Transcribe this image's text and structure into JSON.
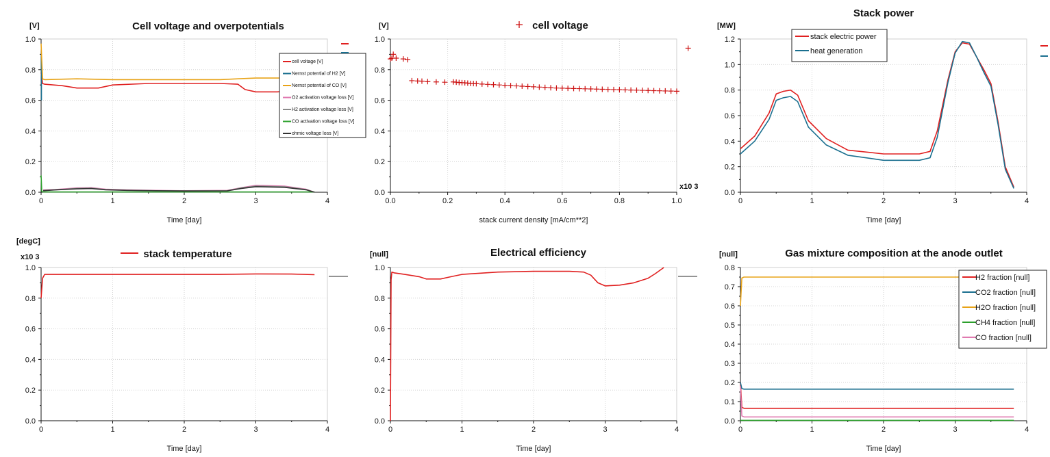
{
  "chart_data": [
    {
      "type": "line",
      "title": "Cell voltage and overpotentials",
      "unit": "[V]",
      "xlabel": "Time [day]",
      "xlim": [
        0,
        4
      ],
      "ylim": [
        0,
        1
      ],
      "xticks": [
        "0",
        "1",
        "2",
        "3",
        "4"
      ],
      "yticks": [
        "0.0",
        "0.2",
        "0.4",
        "0.6",
        "0.8",
        "1.0"
      ],
      "legend_style": "small",
      "legend_position": "right",
      "series": [
        {
          "name": "cell voltage [V]",
          "color": "#e02020",
          "x": [
            0,
            0.02,
            0.05,
            0.3,
            0.5,
            0.8,
            1.0,
            1.5,
            2.0,
            2.5,
            2.75,
            2.85,
            3.0,
            3.3,
            3.45
          ],
          "y": [
            0.78,
            0.71,
            0.705,
            0.695,
            0.68,
            0.68,
            0.7,
            0.71,
            0.71,
            0.71,
            0.705,
            0.67,
            0.655,
            0.655,
            0.66
          ]
        },
        {
          "name": "Nernst potential of H2 [V]",
          "color": "#1a6f8f",
          "x": [
            0.005,
            0.005
          ],
          "y": [
            0.6,
            0.9
          ]
        },
        {
          "name": "Nernst potential of CO [V]",
          "color": "#e8a317",
          "x": [
            0,
            0.02,
            0.05,
            0.5,
            1.0,
            1.5,
            2.0,
            2.5,
            2.75,
            3.0,
            3.45
          ],
          "y": [
            0.97,
            0.74,
            0.735,
            0.74,
            0.735,
            0.735,
            0.735,
            0.735,
            0.74,
            0.745,
            0.745
          ]
        },
        {
          "name": "O2 activation voltage loss [V]",
          "color": "#e07ab0",
          "x": [
            0.03,
            0.2,
            0.5,
            0.7,
            0.9,
            1.2,
            1.6,
            2.0,
            2.6,
            2.8,
            3.0,
            3.4,
            3.7,
            3.82
          ],
          "y": [
            0.015,
            0.018,
            0.028,
            0.03,
            0.02,
            0.015,
            0.012,
            0.01,
            0.012,
            0.03,
            0.045,
            0.04,
            0.02,
            0.0
          ]
        },
        {
          "name": "H2 activation voltage loss [V]",
          "color": "#8a8a8a",
          "x": [
            0.03,
            0.2,
            0.5,
            0.7,
            0.9,
            1.2,
            1.6,
            2.0,
            2.6,
            2.8,
            3.0,
            3.4,
            3.7,
            3.82
          ],
          "y": [
            0.012,
            0.016,
            0.025,
            0.027,
            0.018,
            0.013,
            0.01,
            0.009,
            0.01,
            0.028,
            0.04,
            0.036,
            0.018,
            0.0
          ]
        },
        {
          "name": "CO activation voltage loss [V]",
          "color": "#2ca02c",
          "x": [
            0,
            0.01,
            0.03,
            1.0,
            2.0,
            3.0,
            3.82
          ],
          "y": [
            0.11,
            0.005,
            0.002,
            0.002,
            0.002,
            0.002,
            0.002
          ]
        },
        {
          "name": "ohmic voltage loss [V]",
          "color": "#333333",
          "x": [
            0.03,
            0.2,
            0.5,
            0.7,
            0.9,
            1.2,
            1.6,
            2.0,
            2.6,
            2.8,
            3.0,
            3.4,
            3.7,
            3.82
          ],
          "y": [
            0.01,
            0.015,
            0.022,
            0.024,
            0.016,
            0.012,
            0.01,
            0.008,
            0.009,
            0.025,
            0.036,
            0.032,
            0.016,
            0.0
          ]
        }
      ]
    },
    {
      "type": "scatter",
      "title": "cell voltage",
      "unit": "[V]",
      "xlabel": "stack current density [mA/cm**2]",
      "xmultiplier": "x10 3",
      "xlim": [
        0,
        1
      ],
      "ylim": [
        0,
        1
      ],
      "xticks": [
        "0.0",
        "0.2",
        "0.4",
        "0.6",
        "0.8",
        "1.0"
      ],
      "yticks": [
        "0.0",
        "0.2",
        "0.4",
        "0.6",
        "0.8",
        "1.0"
      ],
      "legend_position": "top",
      "marker": "+",
      "series": [
        {
          "name": "cell voltage",
          "color": "#cc1111",
          "x": [
            0.0,
            0.005,
            0.01,
            0.02,
            0.045,
            0.06,
            0.075,
            0.095,
            0.11,
            0.13,
            0.16,
            0.19,
            0.22,
            0.23,
            0.24,
            0.25,
            0.26,
            0.27,
            0.28,
            0.29,
            0.3,
            0.32,
            0.34,
            0.36,
            0.38,
            0.4,
            0.42,
            0.44,
            0.46,
            0.48,
            0.5,
            0.52,
            0.54,
            0.56,
            0.58,
            0.6,
            0.62,
            0.64,
            0.66,
            0.68,
            0.7,
            0.72,
            0.74,
            0.76,
            0.78,
            0.8,
            0.82,
            0.84,
            0.86,
            0.88,
            0.9,
            0.92,
            0.94,
            0.96,
            0.98,
            1.0,
            1.04
          ],
          "y": [
            0.87,
            0.875,
            0.9,
            0.875,
            0.87,
            0.865,
            0.728,
            0.726,
            0.725,
            0.722,
            0.72,
            0.718,
            0.72,
            0.718,
            0.716,
            0.715,
            0.714,
            0.712,
            0.71,
            0.709,
            0.708,
            0.706,
            0.704,
            0.702,
            0.7,
            0.698,
            0.696,
            0.694,
            0.692,
            0.69,
            0.688,
            0.686,
            0.684,
            0.682,
            0.68,
            0.679,
            0.678,
            0.677,
            0.676,
            0.675,
            0.674,
            0.673,
            0.672,
            0.671,
            0.67,
            0.669,
            0.668,
            0.667,
            0.666,
            0.665,
            0.664,
            0.663,
            0.662,
            0.661,
            0.66,
            0.659,
            0.94
          ]
        }
      ]
    },
    {
      "type": "line",
      "title": "Stack power",
      "unit": "[MW]",
      "xlabel": "Time [day]",
      "xlim": [
        0,
        4
      ],
      "ylim": [
        0,
        1.2
      ],
      "xticks": [
        "0",
        "1",
        "2",
        "3",
        "4"
      ],
      "yticks": [
        "0.0",
        "0.2",
        "0.4",
        "0.6",
        "0.8",
        "1.0",
        "1.2"
      ],
      "legend_position": "top-left",
      "series": [
        {
          "name": "stack electric power",
          "color": "#e02020",
          "x": [
            0,
            0.2,
            0.4,
            0.5,
            0.6,
            0.7,
            0.8,
            0.95,
            1.2,
            1.5,
            2.0,
            2.5,
            2.65,
            2.75,
            2.9,
            3.0,
            3.1,
            3.2,
            3.3,
            3.4,
            3.5,
            3.6,
            3.7,
            3.82
          ],
          "y": [
            0.34,
            0.44,
            0.62,
            0.77,
            0.79,
            0.8,
            0.76,
            0.56,
            0.42,
            0.33,
            0.3,
            0.3,
            0.32,
            0.48,
            0.88,
            1.1,
            1.17,
            1.16,
            1.06,
            0.96,
            0.85,
            0.55,
            0.2,
            0.04
          ]
        },
        {
          "name": "heat generation",
          "color": "#1a6f8f",
          "x": [
            0,
            0.2,
            0.4,
            0.5,
            0.6,
            0.7,
            0.8,
            0.95,
            1.2,
            1.5,
            2.0,
            2.5,
            2.65,
            2.75,
            2.9,
            3.0,
            3.1,
            3.2,
            3.3,
            3.4,
            3.5,
            3.6,
            3.7,
            3.82
          ],
          "y": [
            0.3,
            0.4,
            0.57,
            0.72,
            0.74,
            0.75,
            0.71,
            0.51,
            0.37,
            0.29,
            0.25,
            0.25,
            0.27,
            0.43,
            0.86,
            1.09,
            1.18,
            1.17,
            1.06,
            0.94,
            0.83,
            0.53,
            0.18,
            0.03
          ]
        }
      ]
    },
    {
      "type": "line",
      "title": "stack temperature",
      "unit": "[degC]",
      "ymultiplier": "x10 3",
      "xlabel": "Time [day]",
      "xlim": [
        0,
        4
      ],
      "ylim": [
        0,
        1
      ],
      "xticks": [
        "0",
        "1",
        "2",
        "3",
        "4"
      ],
      "yticks": [
        "0.0",
        "0.2",
        "0.4",
        "0.6",
        "0.8",
        "1.0"
      ],
      "legend_position": "top",
      "series": [
        {
          "name": "stack temperature",
          "color": "#e02020",
          "x": [
            0,
            0.02,
            0.05,
            0.5,
            1.0,
            2.0,
            2.5,
            3.0,
            3.5,
            3.82
          ],
          "y": [
            0.8,
            0.93,
            0.955,
            0.955,
            0.955,
            0.955,
            0.955,
            0.958,
            0.957,
            0.953
          ]
        }
      ]
    },
    {
      "type": "line",
      "title": "Electrical efficiency",
      "unit": "[null]",
      "xlabel": "Time [day]",
      "xlim": [
        0,
        4
      ],
      "ylim": [
        0,
        1
      ],
      "xticks": [
        "0",
        "1",
        "2",
        "3",
        "4"
      ],
      "yticks": [
        "0.0",
        "0.2",
        "0.4",
        "0.6",
        "0.8",
        "1.0"
      ],
      "legend_position": "none",
      "series": [
        {
          "name": "electrical efficiency",
          "color": "#e02020",
          "x": [
            0,
            0.01,
            0.02,
            0.05,
            0.2,
            0.4,
            0.5,
            0.7,
            0.85,
            1.0,
            1.5,
            2.0,
            2.5,
            2.7,
            2.8,
            2.9,
            3.0,
            3.2,
            3.4,
            3.6,
            3.7,
            3.82
          ],
          "y": [
            0.0,
            0.92,
            0.97,
            0.965,
            0.955,
            0.94,
            0.925,
            0.925,
            0.94,
            0.955,
            0.97,
            0.975,
            0.975,
            0.97,
            0.95,
            0.9,
            0.88,
            0.885,
            0.9,
            0.93,
            0.96,
            1.0
          ]
        }
      ]
    },
    {
      "type": "line",
      "title": "Gas mixture composition at the anode outlet",
      "unit": "[null]",
      "xlabel": "Time [day]",
      "xlim": [
        0,
        4
      ],
      "ylim": [
        0,
        0.8
      ],
      "xticks": [
        "0",
        "1",
        "2",
        "3",
        "4"
      ],
      "yticks": [
        "0.0",
        "0.1",
        "0.2",
        "0.3",
        "0.4",
        "0.5",
        "0.6",
        "0.7",
        "0.8"
      ],
      "legend_position": "right",
      "series": [
        {
          "name": "H2 fraction [null]",
          "color": "#e02020",
          "x": [
            0,
            0.02,
            0.05,
            1.0,
            2.0,
            3.0,
            3.82
          ],
          "y": [
            0.2,
            0.07,
            0.065,
            0.065,
            0.065,
            0.065,
            0.065
          ]
        },
        {
          "name": "CO2 fraction [null]",
          "color": "#1a6f8f",
          "x": [
            0,
            0.02,
            0.05,
            1.0,
            2.0,
            3.0,
            3.82
          ],
          "y": [
            0.2,
            0.168,
            0.165,
            0.165,
            0.165,
            0.165,
            0.165
          ]
        },
        {
          "name": "H2O fraction [null]",
          "color": "#e8a317",
          "x": [
            0,
            0.02,
            0.05,
            1.0,
            2.0,
            3.0,
            3.82
          ],
          "y": [
            0.6,
            0.745,
            0.75,
            0.75,
            0.75,
            0.75,
            0.75
          ]
        },
        {
          "name": "CH4 fraction [null]",
          "color": "#2ca02c",
          "x": [
            0,
            0.02,
            1.0,
            2.0,
            3.0,
            3.82
          ],
          "y": [
            0.002,
            0.002,
            0.002,
            0.002,
            0.002,
            0.002
          ]
        },
        {
          "name": "CO fraction [null]",
          "color": "#e07ab0",
          "x": [
            0,
            0.02,
            0.05,
            1.0,
            2.0,
            3.0,
            3.82
          ],
          "y": [
            0.18,
            0.025,
            0.02,
            0.02,
            0.02,
            0.02,
            0.02
          ]
        }
      ]
    }
  ]
}
